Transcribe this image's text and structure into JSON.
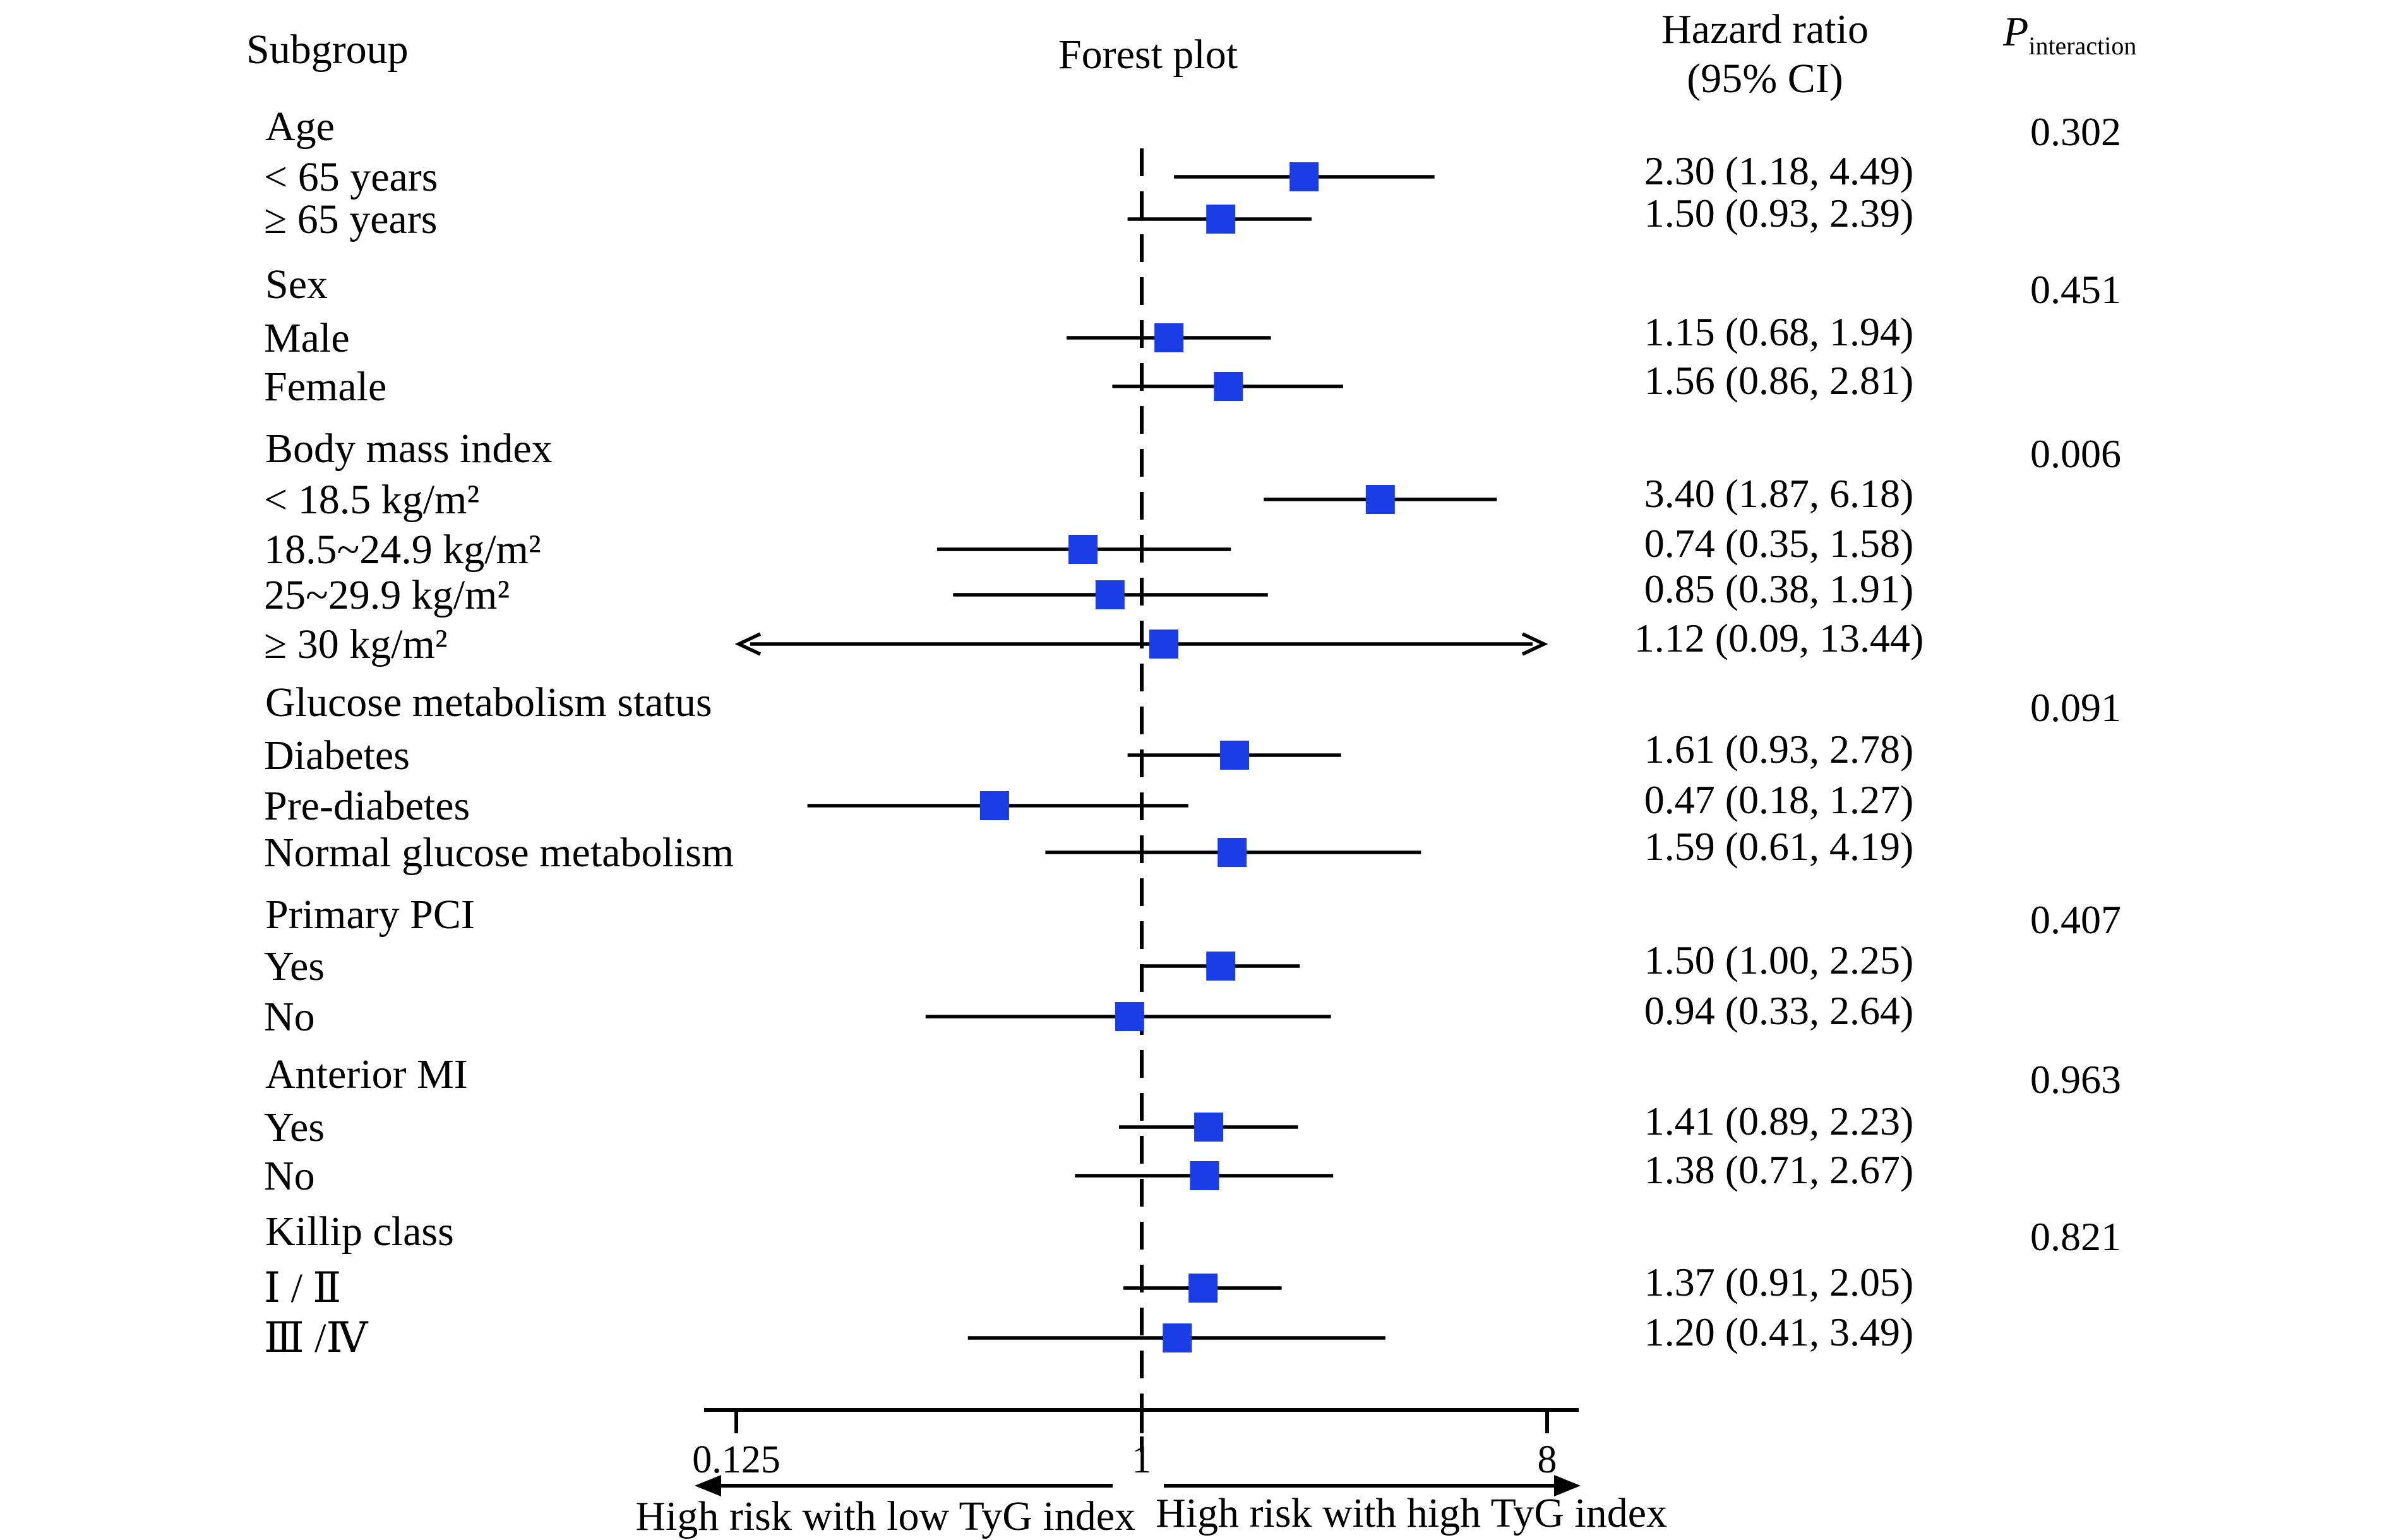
{
  "headers": {
    "subgroup": "Subgroup",
    "forest_plot": "Forest plot",
    "hr_line1": "Hazard ratio",
    "hr_line2": "(95% CI)",
    "p_main": "P",
    "p_sub": "interaction"
  },
  "colors": {
    "marker": "#1a3de6",
    "line": "#000000"
  },
  "chart_data": {
    "type": "forest",
    "title": "Forest plot",
    "x_scale": "log2",
    "xlim": [
      0.125,
      8
    ],
    "x_ticks": [
      0.125,
      1,
      8
    ],
    "x_tick_labels": [
      "0.125",
      "1",
      "8"
    ],
    "reference_line": 1,
    "direction_labels": {
      "left": "High risk with low TyG index",
      "right": "High risk with high TyG index"
    },
    "groups": [
      {
        "label": "Age",
        "p_interaction": "0.302",
        "rows": [
          {
            "label": "< 65 years",
            "hr": 2.3,
            "lower": 1.18,
            "upper": 4.49,
            "text": "2.30 (1.18, 4.49)"
          },
          {
            "label": "≥ 65 years",
            "hr": 1.5,
            "lower": 0.93,
            "upper": 2.39,
            "text": "1.50 (0.93, 2.39)"
          }
        ]
      },
      {
        "label": "Sex",
        "p_interaction": "0.451",
        "rows": [
          {
            "label": "Male",
            "hr": 1.15,
            "lower": 0.68,
            "upper": 1.94,
            "text": "1.15 (0.68, 1.94)"
          },
          {
            "label": "Female",
            "hr": 1.56,
            "lower": 0.86,
            "upper": 2.81,
            "text": "1.56 (0.86, 2.81)"
          }
        ]
      },
      {
        "label": "Body mass index",
        "p_interaction": "0.006",
        "rows": [
          {
            "label": "< 18.5 kg/m²",
            "hr": 3.4,
            "lower": 1.87,
            "upper": 6.18,
            "text": "3.40 (1.87, 6.18)"
          },
          {
            "label": "18.5~24.9 kg/m²",
            "hr": 0.74,
            "lower": 0.35,
            "upper": 1.58,
            "text": "0.74 (0.35, 1.58)"
          },
          {
            "label": "25~29.9 kg/m²",
            "hr": 0.85,
            "lower": 0.38,
            "upper": 1.91,
            "text": "0.85 (0.38, 1.91)"
          },
          {
            "label": "≥ 30 kg/m²",
            "hr": 1.12,
            "lower": 0.09,
            "upper": 13.44,
            "text": "1.12 (0.09, 13.44)"
          }
        ]
      },
      {
        "label": "Glucose metabolism status",
        "p_interaction": "0.091",
        "rows": [
          {
            "label": "Diabetes",
            "hr": 1.61,
            "lower": 0.93,
            "upper": 2.78,
            "text": "1.61 (0.93, 2.78)"
          },
          {
            "label": "Pre-diabetes",
            "hr": 0.47,
            "lower": 0.18,
            "upper": 1.27,
            "text": "0.47 (0.18, 1.27)"
          },
          {
            "label": "Normal glucose metabolism",
            "hr": 1.59,
            "lower": 0.61,
            "upper": 4.19,
            "text": "1.59 (0.61, 4.19)"
          }
        ]
      },
      {
        "label": "Primary PCI",
        "p_interaction": "0.407",
        "rows": [
          {
            "label": "Yes",
            "hr": 1.5,
            "lower": 1.0,
            "upper": 2.25,
            "text": "1.50 (1.00, 2.25)"
          },
          {
            "label": "No",
            "hr": 0.94,
            "lower": 0.33,
            "upper": 2.64,
            "text": "0.94 (0.33, 2.64)"
          }
        ]
      },
      {
        "label": "Anterior MI",
        "p_interaction": "0.963",
        "rows": [
          {
            "label": "Yes",
            "hr": 1.41,
            "lower": 0.89,
            "upper": 2.23,
            "text": "1.41 (0.89, 2.23)"
          },
          {
            "label": "No",
            "hr": 1.38,
            "lower": 0.71,
            "upper": 2.67,
            "text": "1.38 (0.71, 2.67)"
          }
        ]
      },
      {
        "label": "Killip class",
        "p_interaction": "0.821",
        "rows": [
          {
            "label": "Ⅰ / Ⅱ",
            "hr": 1.37,
            "lower": 0.91,
            "upper": 2.05,
            "text": "1.37 (0.91, 2.05)"
          },
          {
            "label": "Ⅲ /Ⅳ",
            "hr": 1.2,
            "lower": 0.41,
            "upper": 3.49,
            "text": "1.20 (0.41, 3.49)"
          }
        ]
      }
    ]
  }
}
